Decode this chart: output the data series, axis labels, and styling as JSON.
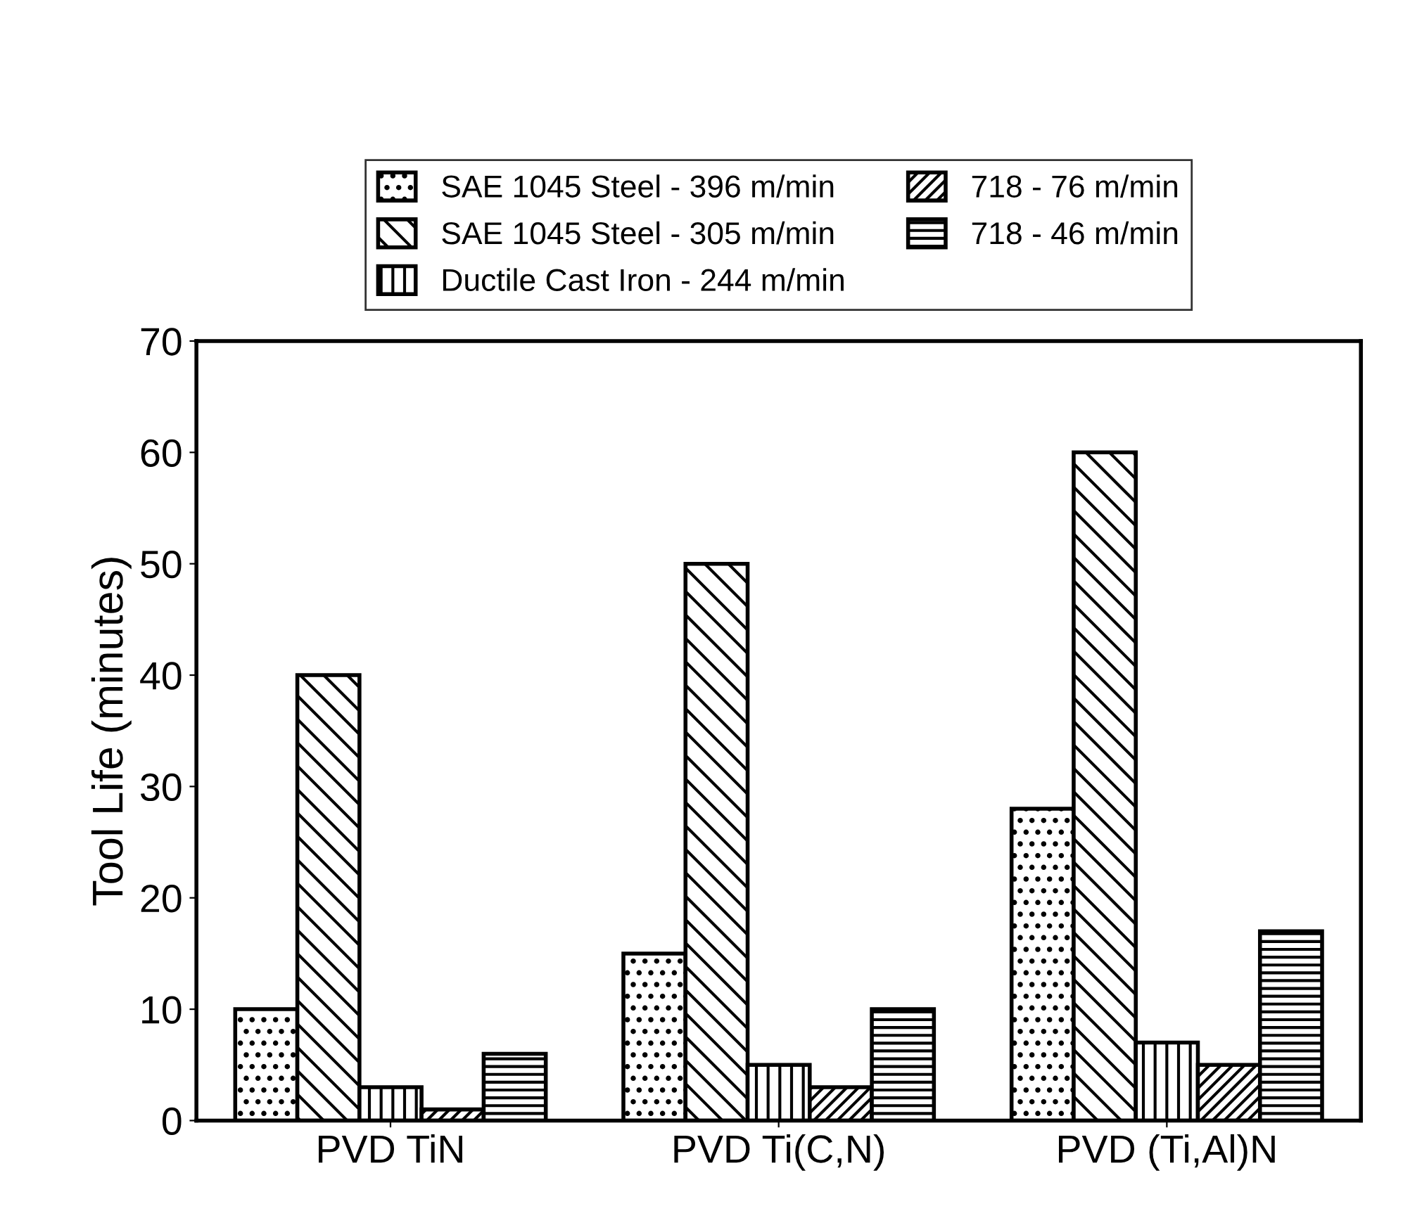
{
  "chart_data": {
    "type": "bar",
    "ylabel": "Tool Life (minutes)",
    "categories": [
      "PVD TiN",
      "PVD Ti(C,N)",
      "PVD (Ti,Al)N"
    ],
    "series": [
      {
        "name": "SAE 1045 Steel - 396 m/min",
        "color": "#000000",
        "values": [
          10,
          15,
          28
        ]
      },
      {
        "name": "SAE 1045 Steel - 305 m/min",
        "color": "#000000",
        "values": [
          40,
          50,
          60
        ]
      },
      {
        "name": "Ductile Cast Iron - 244 m/min",
        "color": "#000000",
        "values": [
          3,
          5,
          7
        ]
      },
      {
        "name": "718 - 76 m/min",
        "color": "#000000",
        "values": [
          1,
          3,
          5
        ]
      },
      {
        "name": "718 - 46 m/min",
        "color": "#000000",
        "values": [
          6,
          10,
          17
        ]
      }
    ],
    "ylim": [
      0,
      70
    ],
    "yticks": [
      0,
      10,
      20,
      30,
      40,
      50,
      60,
      70
    ],
    "grid": false,
    "legend": "top"
  }
}
